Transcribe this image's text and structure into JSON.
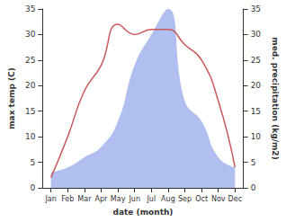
{
  "chart_data": {
    "type": "line",
    "categories": [
      "Jan",
      "Feb",
      "Mar",
      "Apr",
      "May",
      "Jun",
      "Jul",
      "Aug",
      "Sep",
      "Oct",
      "Nov",
      "Dec"
    ],
    "x_label": "date (month)",
    "y_label": "max temp (C)",
    "y2_label": "med. precipitation (kg/m2)",
    "ylim": [
      0,
      35
    ],
    "yticks": [
      0,
      5,
      10,
      15,
      20,
      25,
      30,
      35
    ],
    "y2lim": [
      0,
      35
    ],
    "y2ticks": [
      0,
      5,
      10,
      15,
      20,
      25,
      30,
      35
    ],
    "grid": false,
    "series": [
      {
        "type": "area",
        "axis": "y2",
        "color": "#b0bff0",
        "values": [
          3,
          4,
          6,
          8,
          13,
          24,
          30,
          35,
          17,
          13,
          6,
          4
        ]
      },
      {
        "type": "line",
        "axis": "y",
        "color": "#c95a5a",
        "values": [
          2,
          10,
          19,
          24,
          32,
          30,
          31,
          31,
          28,
          25,
          17,
          4
        ]
      }
    ]
  }
}
